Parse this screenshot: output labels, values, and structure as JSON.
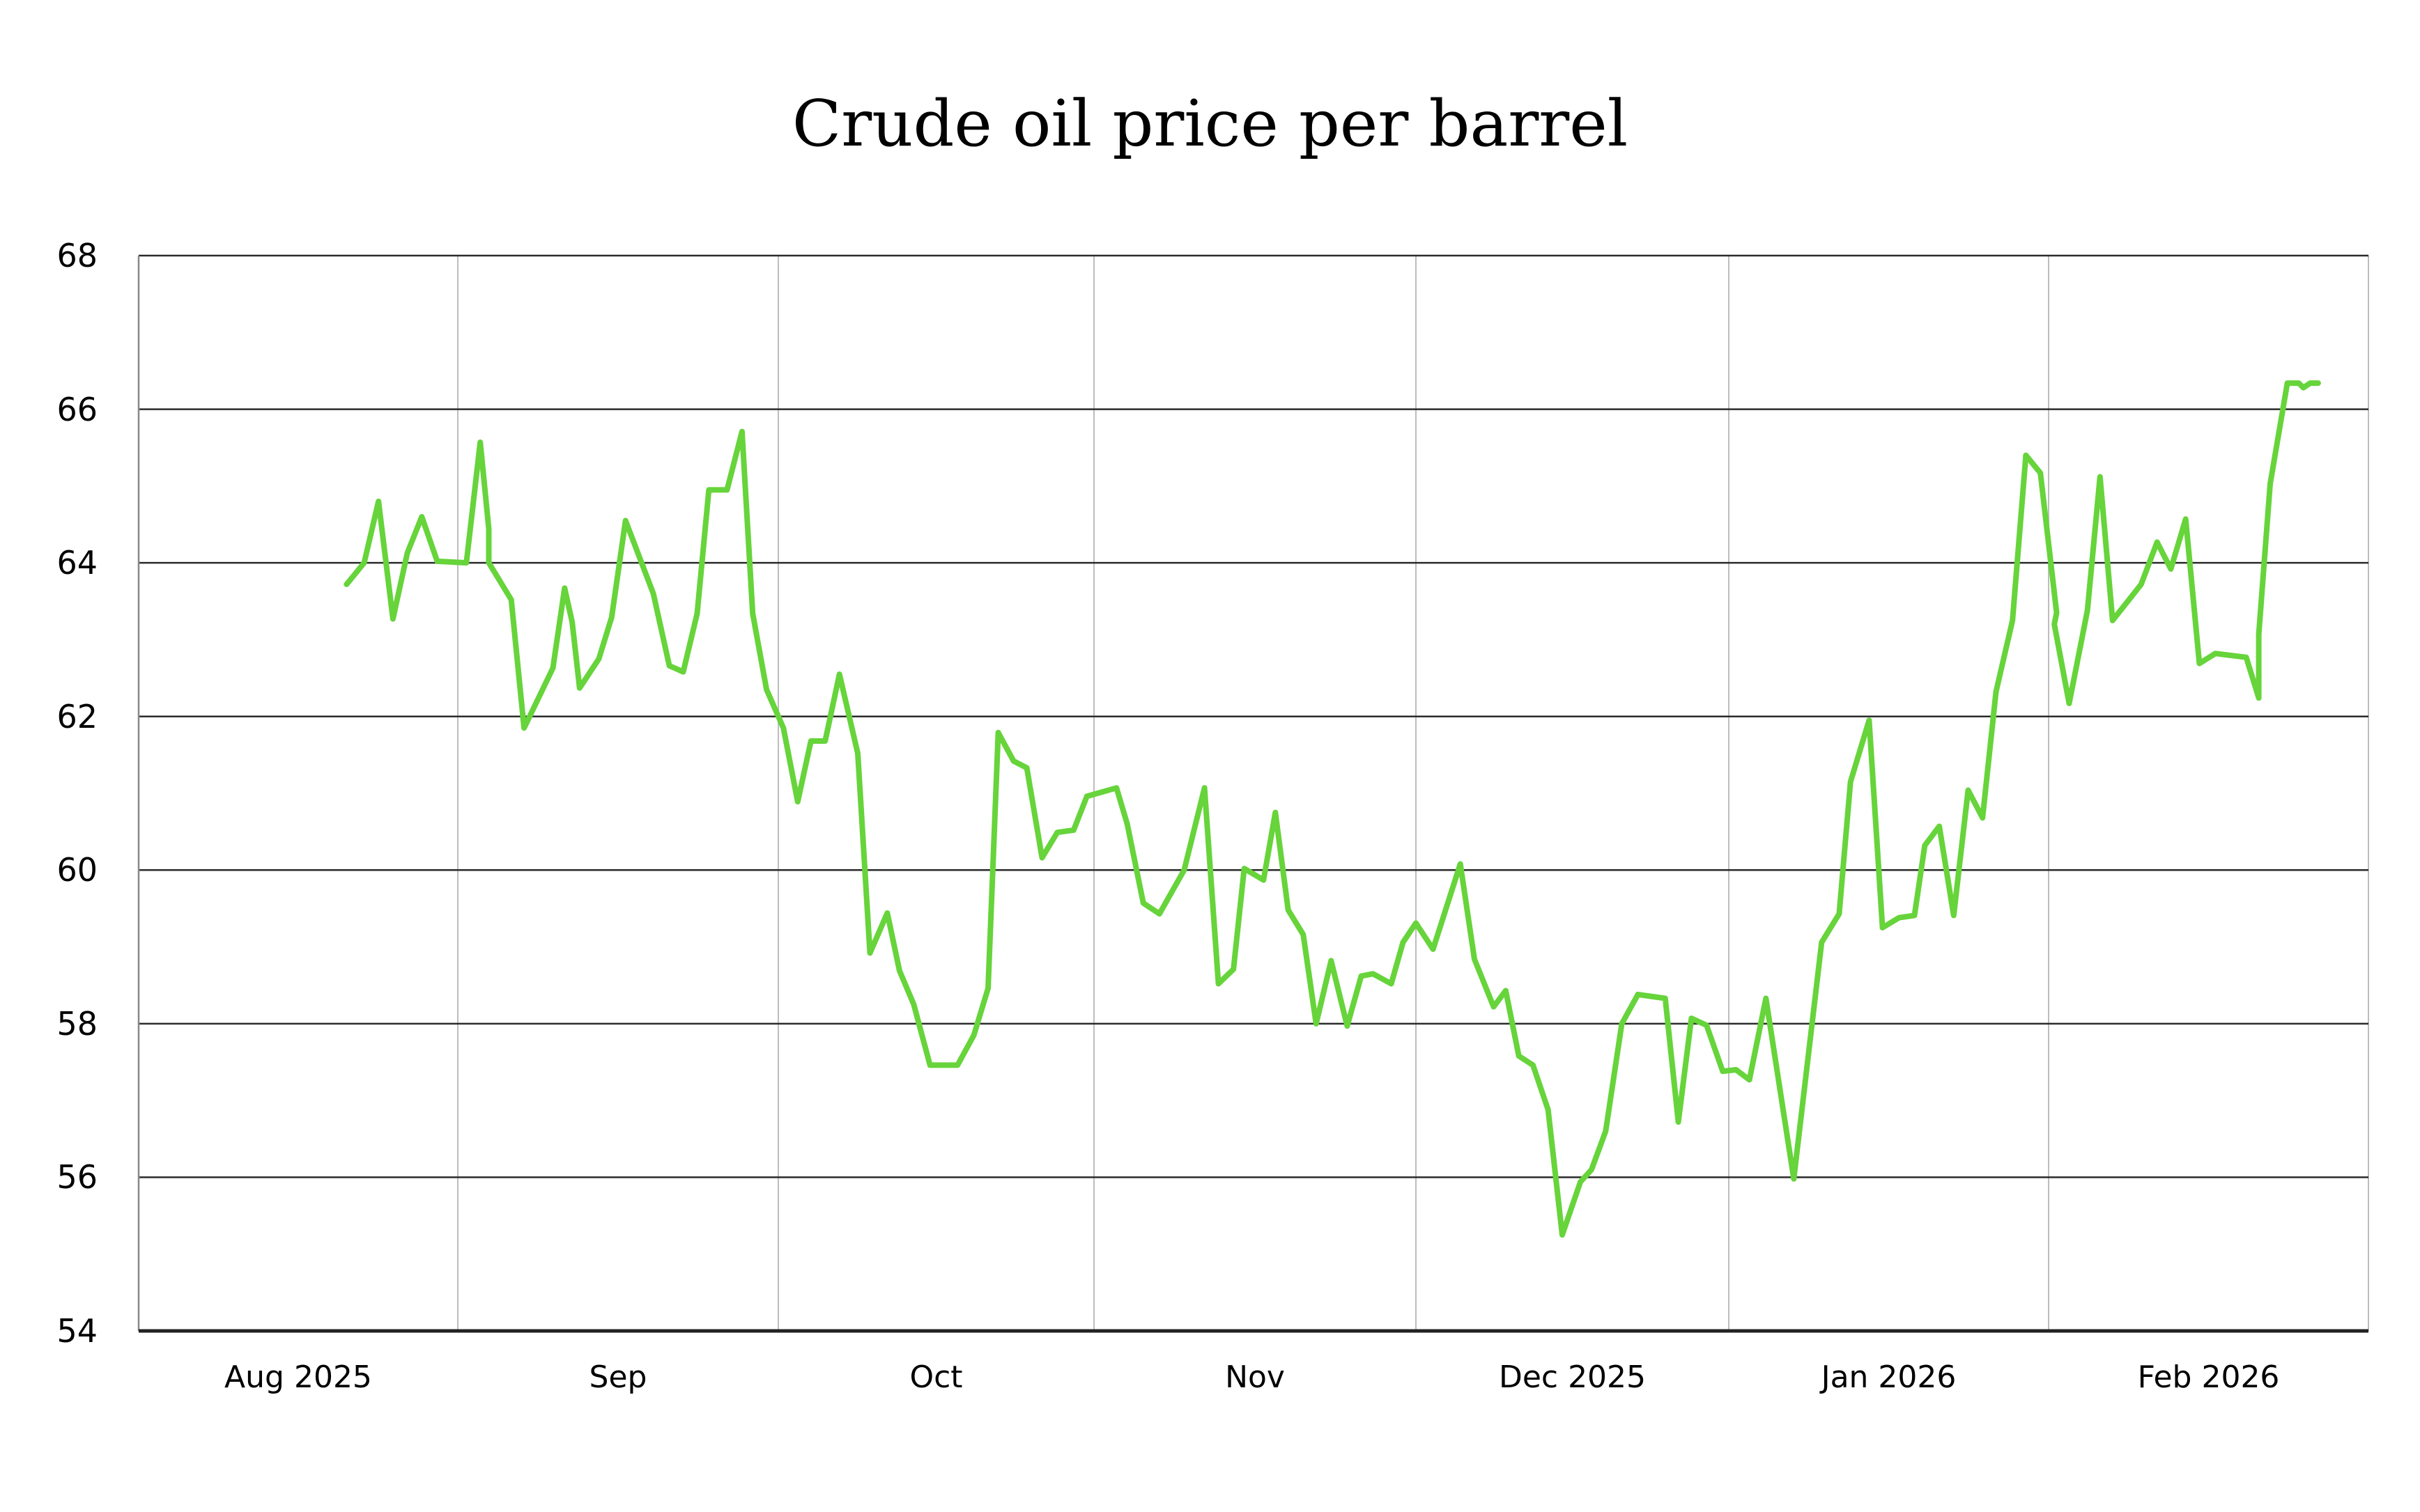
{
  "chart_data": {
    "type": "line",
    "title": "Crude oil price per barrel",
    "xlabel": "",
    "ylabel": "",
    "ylim": [
      54,
      68
    ],
    "yticks": [
      54,
      56,
      58,
      60,
      62,
      64,
      66,
      68
    ],
    "grid": {
      "horizontal": true,
      "vertical": true
    },
    "legend": null,
    "x_unit": "days since 2025-08-01 (approximate, read from pixel positions)",
    "month_boundaries_days": [
      0,
      31,
      61,
      92,
      122,
      153,
      184,
      212
    ],
    "xtick_labels": [
      "Aug 2025",
      "Sep",
      "Oct",
      "Nov",
      "Dec 2025",
      "Jan 2026",
      "Feb 2026"
    ],
    "series": [
      {
        "name": "Crude oil price",
        "color": "#66D43A",
        "points": [
          [
            20.2,
            63.72
          ],
          [
            21.9,
            64.0
          ],
          [
            23.3,
            64.8
          ],
          [
            24.7,
            63.27
          ],
          [
            26.1,
            64.13
          ],
          [
            27.5,
            64.6
          ],
          [
            29.0,
            64.02
          ],
          [
            31.8,
            64.0
          ],
          [
            33.1,
            65.57
          ],
          [
            33.9,
            64.44
          ],
          [
            33.9,
            64.0
          ],
          [
            36.0,
            63.52
          ],
          [
            37.2,
            61.85
          ],
          [
            39.9,
            62.63
          ],
          [
            41.0,
            63.67
          ],
          [
            41.7,
            63.23
          ],
          [
            42.4,
            62.37
          ],
          [
            44.2,
            62.75
          ],
          [
            45.4,
            63.29
          ],
          [
            46.7,
            64.55
          ],
          [
            49.3,
            63.6
          ],
          [
            50.8,
            62.66
          ],
          [
            52.1,
            62.58
          ],
          [
            53.4,
            63.34
          ],
          [
            54.5,
            64.95
          ],
          [
            56.2,
            64.95
          ],
          [
            57.6,
            65.71
          ],
          [
            58.6,
            63.34
          ],
          [
            59.9,
            62.35
          ],
          [
            61.5,
            61.85
          ],
          [
            62.9,
            60.89
          ],
          [
            64.2,
            61.68
          ],
          [
            65.6,
            61.68
          ],
          [
            67.0,
            62.55
          ],
          [
            68.8,
            61.52
          ],
          [
            70.0,
            58.92
          ],
          [
            71.7,
            59.44
          ],
          [
            72.9,
            58.69
          ],
          [
            74.3,
            58.25
          ],
          [
            75.9,
            57.46
          ],
          [
            78.6,
            57.46
          ],
          [
            80.2,
            57.85
          ],
          [
            81.6,
            58.46
          ],
          [
            82.6,
            61.79
          ],
          [
            84.1,
            61.42
          ],
          [
            85.4,
            61.33
          ],
          [
            86.9,
            60.16
          ],
          [
            88.4,
            60.49
          ],
          [
            90.0,
            60.52
          ],
          [
            91.3,
            60.96
          ],
          [
            94.1,
            61.07
          ],
          [
            95.1,
            60.6
          ],
          [
            96.6,
            59.57
          ],
          [
            98.1,
            59.43
          ],
          [
            100.4,
            60.0
          ],
          [
            102.3,
            61.07
          ],
          [
            103.6,
            58.52
          ],
          [
            105.0,
            58.71
          ],
          [
            106.0,
            60.02
          ],
          [
            107.8,
            59.87
          ],
          [
            108.9,
            60.75
          ],
          [
            110.1,
            59.48
          ],
          [
            111.5,
            59.16
          ],
          [
            112.7,
            58.0
          ],
          [
            114.1,
            58.82
          ],
          [
            115.6,
            57.97
          ],
          [
            116.9,
            58.62
          ],
          [
            118.0,
            58.65
          ],
          [
            119.7,
            58.52
          ],
          [
            120.8,
            59.06
          ],
          [
            122.0,
            59.31
          ],
          [
            123.7,
            58.97
          ],
          [
            126.4,
            60.08
          ],
          [
            127.8,
            58.84
          ],
          [
            129.7,
            58.22
          ],
          [
            130.9,
            58.43
          ],
          [
            132.2,
            57.58
          ],
          [
            133.6,
            57.46
          ],
          [
            135.1,
            56.88
          ],
          [
            136.5,
            55.25
          ],
          [
            138.3,
            55.94
          ],
          [
            139.4,
            56.1
          ],
          [
            140.8,
            56.6
          ],
          [
            142.4,
            58.0
          ],
          [
            144.0,
            58.38
          ],
          [
            146.7,
            58.33
          ],
          [
            148.0,
            56.72
          ],
          [
            149.3,
            58.07
          ],
          [
            150.8,
            57.98
          ],
          [
            152.4,
            57.38
          ],
          [
            153.7,
            57.4
          ],
          [
            155.0,
            57.27
          ],
          [
            156.6,
            58.33
          ],
          [
            159.3,
            55.98
          ],
          [
            162.0,
            59.06
          ],
          [
            163.7,
            59.43
          ],
          [
            164.8,
            61.15
          ],
          [
            166.6,
            61.95
          ],
          [
            167.9,
            59.25
          ],
          [
            169.5,
            59.38
          ],
          [
            171.0,
            59.41
          ],
          [
            172.0,
            60.32
          ],
          [
            173.4,
            60.57
          ],
          [
            174.8,
            59.41
          ],
          [
            176.2,
            61.04
          ],
          [
            177.6,
            60.68
          ],
          [
            178.9,
            62.32
          ],
          [
            180.5,
            63.25
          ],
          [
            181.8,
            65.4
          ],
          [
            183.2,
            65.17
          ],
          [
            184.7,
            63.35
          ],
          [
            184.5,
            63.2
          ],
          [
            185.8,
            62.17
          ],
          [
            187.4,
            63.38
          ],
          [
            188.5,
            65.12
          ],
          [
            189.6,
            63.25
          ],
          [
            192.1,
            63.72
          ],
          [
            193.5,
            64.27
          ],
          [
            194.7,
            63.92
          ],
          [
            196.0,
            64.57
          ],
          [
            197.2,
            62.69
          ],
          [
            198.6,
            62.82
          ],
          [
            201.3,
            62.77
          ],
          [
            202.4,
            62.24
          ],
          [
            202.4,
            63.07
          ],
          [
            203.4,
            65.03
          ],
          [
            204.9,
            66.34
          ],
          [
            205.9,
            66.34
          ],
          [
            206.3,
            66.28
          ],
          [
            206.9,
            66.34
          ],
          [
            207.6,
            66.34
          ]
        ]
      }
    ]
  },
  "colors": {
    "line": "#66D43A",
    "hgrid": "#2b2b2b",
    "vgrid": "#bdbdbd",
    "axis": "#222222",
    "text": "#000000"
  }
}
